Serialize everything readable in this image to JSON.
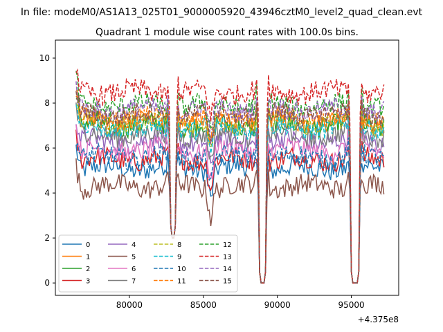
{
  "chart_data": {
    "type": "line",
    "suptitle": "In file: modeM0/AS1A13_025T01_9000005920_43946cztM0_level2_quad_clean.evt",
    "title": "Quadrant 1 module wise count rates with 100.0s bins.",
    "xlabel": "",
    "ylabel": "",
    "x_offset_label": "+4.375e8",
    "x_offset": 437500000,
    "xlim": [
      75000,
      98200
    ],
    "ylim": [
      -0.55,
      10.8
    ],
    "xticks": [
      80000,
      85000,
      90000,
      95000
    ],
    "xtick_labels": [
      "80000",
      "85000",
      "90000",
      "95000"
    ],
    "yticks": [
      0,
      2,
      4,
      6,
      8,
      10
    ],
    "ytick_labels": [
      "0",
      "2",
      "4",
      "6",
      "8",
      "10"
    ],
    "x_range": [
      76400,
      97200
    ],
    "bin_size_s": 100,
    "gaps": [
      {
        "start": 82700,
        "end": 83200,
        "depth_min": 2.0
      },
      {
        "start": 88700,
        "end": 89300,
        "depth_min": 0
      },
      {
        "start": 94900,
        "end": 95600,
        "depth_min": 0
      }
    ],
    "dip": {
      "center": 85500,
      "drop": 1.3
    },
    "legend": {
      "location": "lower-left",
      "columns": 4
    },
    "series": [
      {
        "name": "0",
        "mean": 5.1,
        "color": "#1f77b4",
        "dashed": false
      },
      {
        "name": "1",
        "mean": 7.2,
        "color": "#ff7f0e",
        "dashed": false
      },
      {
        "name": "2",
        "mean": 7.0,
        "color": "#2ca02c",
        "dashed": false
      },
      {
        "name": "3",
        "mean": 5.5,
        "color": "#d62728",
        "dashed": false
      },
      {
        "name": "4",
        "mean": 6.3,
        "color": "#9467bd",
        "dashed": false
      },
      {
        "name": "5",
        "mean": 4.3,
        "color": "#8c564b",
        "dashed": false
      },
      {
        "name": "6",
        "mean": 5.9,
        "color": "#e377c2",
        "dashed": false
      },
      {
        "name": "7",
        "mean": 6.6,
        "color": "#7f7f7f",
        "dashed": false
      },
      {
        "name": "8",
        "mean": 7.1,
        "color": "#bcbd22",
        "dashed": true
      },
      {
        "name": "9",
        "mean": 6.9,
        "color": "#17becf",
        "dashed": true
      },
      {
        "name": "10",
        "mean": 5.6,
        "color": "#1f77b4",
        "dashed": true
      },
      {
        "name": "11",
        "mean": 7.3,
        "color": "#ff7f0e",
        "dashed": true
      },
      {
        "name": "12",
        "mean": 7.9,
        "color": "#2ca02c",
        "dashed": true
      },
      {
        "name": "13",
        "mean": 8.5,
        "color": "#d62728",
        "dashed": true
      },
      {
        "name": "14",
        "mean": 7.7,
        "color": "#9467bd",
        "dashed": true
      },
      {
        "name": "15",
        "mean": 7.5,
        "color": "#8c564b",
        "dashed": true
      }
    ]
  }
}
